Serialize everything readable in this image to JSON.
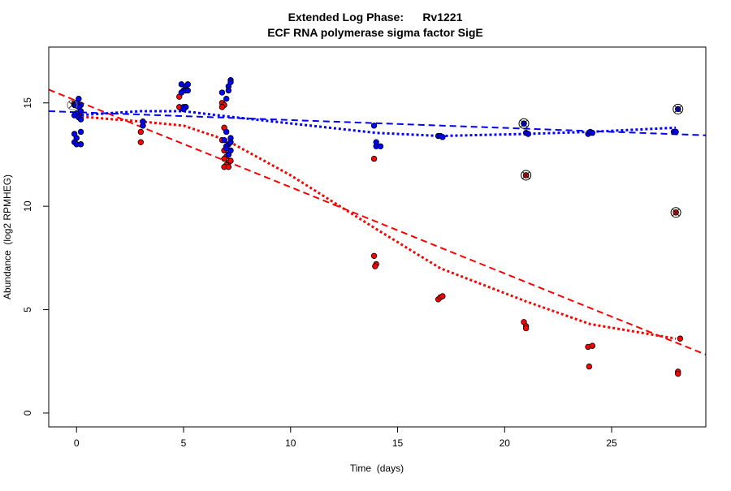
{
  "chart_data": {
    "type": "scatter",
    "title": "Extended Log Phase:      Rv1221",
    "subtitle": "ECF RNA polymerase sigma factor SigE",
    "xlabel": "Time  (days)",
    "ylabel": "Abundance  (log2 RPMHEG)",
    "xlim": [
      -1.3,
      29.4
    ],
    "ylim": [
      -0.67,
      17.7
    ],
    "xticks": [
      0,
      5,
      10,
      15,
      20,
      25
    ],
    "yticks": [
      0,
      5,
      10,
      15
    ],
    "grid": false,
    "colors": {
      "red": "#ff0000",
      "blue": "#0000ff"
    },
    "series": [
      {
        "color": "red",
        "points": [
          [
            -0.1,
            15.0
          ],
          [
            0.0,
            14.9
          ],
          [
            0.1,
            14.4
          ],
          [
            3.0,
            13.1
          ],
          [
            3.0,
            13.6
          ],
          [
            3.1,
            13.9
          ],
          [
            4.8,
            15.3
          ],
          [
            4.9,
            15.5
          ],
          [
            4.8,
            14.8
          ],
          [
            5.0,
            14.7
          ],
          [
            5.1,
            14.8
          ],
          [
            6.8,
            15.0
          ],
          [
            6.9,
            14.9
          ],
          [
            6.8,
            14.8
          ],
          [
            6.9,
            13.8
          ],
          [
            6.8,
            13.2
          ],
          [
            7.0,
            12.9
          ],
          [
            6.9,
            12.7
          ],
          [
            7.1,
            12.5
          ],
          [
            7.0,
            12.4
          ],
          [
            6.9,
            12.3
          ],
          [
            7.1,
            12.1
          ],
          [
            7.0,
            12.0
          ],
          [
            6.9,
            11.9
          ],
          [
            7.1,
            11.9
          ],
          [
            7.2,
            12.2
          ],
          [
            13.9,
            12.3
          ],
          [
            13.9,
            7.6
          ],
          [
            14.0,
            7.2
          ],
          [
            13.95,
            7.1
          ],
          [
            16.9,
            5.5
          ],
          [
            17.0,
            5.6
          ],
          [
            17.1,
            5.65
          ],
          [
            21.0,
            11.5
          ],
          [
            20.9,
            4.4
          ],
          [
            21.0,
            4.2
          ],
          [
            21.0,
            4.1
          ],
          [
            23.9,
            3.2
          ],
          [
            24.1,
            3.25
          ],
          [
            23.95,
            2.25
          ],
          [
            28.0,
            9.7
          ],
          [
            28.2,
            3.6
          ],
          [
            28.1,
            2.0
          ],
          [
            28.1,
            1.9
          ]
        ]
      },
      {
        "color": "blue",
        "points": [
          [
            -0.1,
            14.9
          ],
          [
            0.1,
            15.2
          ],
          [
            0.0,
            15.0
          ],
          [
            0.2,
            14.9
          ],
          [
            0.0,
            14.5
          ],
          [
            -0.1,
            14.4
          ],
          [
            0.1,
            14.3
          ],
          [
            0.2,
            14.2
          ],
          [
            0.2,
            13.6
          ],
          [
            -0.1,
            13.5
          ],
          [
            0.0,
            13.3
          ],
          [
            -0.1,
            13.1
          ],
          [
            0.0,
            13.0
          ],
          [
            0.2,
            13.0
          ],
          [
            0.1,
            14.8
          ],
          [
            0.2,
            14.6
          ],
          [
            3.1,
            14.1
          ],
          [
            3.1,
            13.9
          ],
          [
            4.9,
            15.9
          ],
          [
            5.1,
            15.8
          ],
          [
            5.2,
            15.9
          ],
          [
            5.0,
            15.6
          ],
          [
            4.9,
            15.5
          ],
          [
            5.1,
            15.6
          ],
          [
            5.2,
            15.6
          ],
          [
            5.0,
            14.8
          ],
          [
            5.1,
            14.8
          ],
          [
            5.0,
            14.7
          ],
          [
            7.2,
            16.1
          ],
          [
            7.2,
            16.0
          ],
          [
            7.1,
            15.8
          ],
          [
            7.1,
            15.6
          ],
          [
            6.8,
            15.5
          ],
          [
            7.0,
            15.2
          ],
          [
            7.0,
            13.6
          ],
          [
            7.2,
            13.3
          ],
          [
            6.9,
            13.2
          ],
          [
            7.1,
            13.0
          ],
          [
            7.0,
            12.9
          ],
          [
            7.2,
            12.7
          ],
          [
            7.1,
            12.5
          ],
          [
            7.0,
            12.8
          ],
          [
            7.2,
            13.1
          ],
          [
            13.9,
            13.9
          ],
          [
            14.0,
            13.1
          ],
          [
            14.0,
            12.9
          ],
          [
            14.2,
            12.9
          ],
          [
            16.9,
            13.4
          ],
          [
            17.0,
            13.4
          ],
          [
            17.1,
            13.35
          ],
          [
            20.9,
            14.0
          ],
          [
            21.0,
            13.55
          ],
          [
            21.1,
            13.5
          ],
          [
            23.9,
            13.5
          ],
          [
            24.0,
            13.6
          ],
          [
            24.1,
            13.55
          ],
          [
            28.1,
            14.7
          ],
          [
            27.9,
            13.6
          ],
          [
            28.0,
            13.6
          ]
        ]
      }
    ],
    "highlighted": [
      [
        -0.2,
        14.9,
        "gray"
      ],
      [
        20.9,
        14.0,
        "blue"
      ],
      [
        21.0,
        11.5,
        "red"
      ],
      [
        28.1,
        14.7,
        "blue"
      ],
      [
        28.0,
        9.7,
        "red"
      ]
    ],
    "fits": [
      {
        "color": "red",
        "style": "dashed",
        "kind": "linear",
        "intercept": 15.1,
        "slope": -0.4175
      },
      {
        "color": "blue",
        "style": "dashed",
        "kind": "linear",
        "intercept": 14.55,
        "slope": -0.038
      },
      {
        "color": "red",
        "style": "dotted",
        "kind": "loess",
        "points": [
          [
            0,
            14.35
          ],
          [
            3,
            14.1
          ],
          [
            5,
            13.9
          ],
          [
            7,
            13.2
          ],
          [
            10,
            11.5
          ],
          [
            14,
            8.9
          ],
          [
            17,
            7.0
          ],
          [
            21,
            5.4
          ],
          [
            24,
            4.3
          ],
          [
            28,
            3.6
          ]
        ]
      },
      {
        "color": "blue",
        "style": "dotted",
        "kind": "loess",
        "points": [
          [
            0,
            14.4
          ],
          [
            3,
            14.6
          ],
          [
            5,
            14.6
          ],
          [
            7,
            14.35
          ],
          [
            14,
            13.55
          ],
          [
            17,
            13.4
          ],
          [
            21,
            13.5
          ],
          [
            24,
            13.6
          ],
          [
            28,
            13.8
          ]
        ]
      }
    ]
  }
}
